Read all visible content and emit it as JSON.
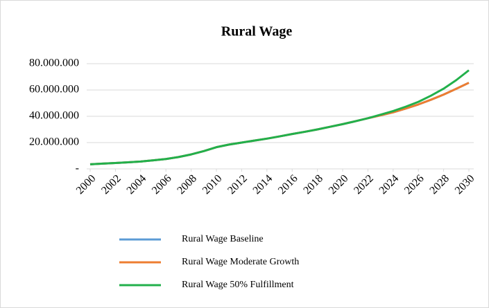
{
  "chart_data": {
    "type": "line",
    "title": "Rural Wage",
    "x": [
      2000,
      2001,
      2002,
      2003,
      2004,
      2005,
      2006,
      2007,
      2008,
      2009,
      2010,
      2011,
      2012,
      2013,
      2014,
      2015,
      2016,
      2017,
      2018,
      2019,
      2020,
      2021,
      2022,
      2023,
      2024,
      2025,
      2026,
      2027,
      2028,
      2029,
      2030
    ],
    "xlim": [
      2000,
      2030
    ],
    "xticks": [
      2000,
      2002,
      2004,
      2006,
      2008,
      2010,
      2012,
      2014,
      2016,
      2018,
      2020,
      2022,
      2024,
      2026,
      2028,
      2030
    ],
    "ylim": [
      0,
      80000000
    ],
    "yticks": [
      {
        "value": 0,
        "label": "-"
      },
      {
        "value": 20000000,
        "label": "20.000.000"
      },
      {
        "value": 40000000,
        "label": "40.000.000"
      },
      {
        "value": 60000000,
        "label": "60.000.000"
      },
      {
        "value": 80000000,
        "label": "80.000.000"
      }
    ],
    "grid": true,
    "legend": "bottom",
    "series": [
      {
        "name": "Rural Wage Baseline",
        "color": "#5b9bd5",
        "values": [
          3500000,
          4000000,
          4500000,
          5000000,
          5600000,
          6500000,
          7500000,
          9000000,
          11000000,
          13500000,
          16500000,
          18500000,
          20000000,
          21500000,
          23000000,
          24700000,
          26500000,
          28200000,
          30000000,
          32000000,
          34000000,
          36200000,
          38500000,
          40700000,
          43000000,
          45900000,
          49000000,
          52600000,
          56500000,
          60900000,
          65500000
        ]
      },
      {
        "name": "Rural Wage Moderate Growth",
        "color": "#ed7d31",
        "values": [
          3500000,
          4000000,
          4500000,
          5000000,
          5600000,
          6500000,
          7500000,
          9000000,
          11000000,
          13500000,
          16500000,
          18500000,
          20000000,
          21500000,
          23000000,
          24700000,
          26500000,
          28200000,
          30000000,
          32000000,
          34000000,
          36200000,
          38500000,
          40700000,
          43000000,
          45900000,
          49000000,
          52600000,
          56500000,
          60900000,
          65500000
        ]
      },
      {
        "name": "Rural Wage 50% Fulfillment",
        "color": "#22b04b",
        "values": [
          3500000,
          4000000,
          4500000,
          5000000,
          5600000,
          6500000,
          7500000,
          9000000,
          11000000,
          13500000,
          16500000,
          18500000,
          20000000,
          21500000,
          23000000,
          24700000,
          26500000,
          28200000,
          30000000,
          32000000,
          34000000,
          36200000,
          38500000,
          41200000,
          44000000,
          47300000,
          51000000,
          55700000,
          61000000,
          67500000,
          75000000
        ]
      }
    ]
  }
}
